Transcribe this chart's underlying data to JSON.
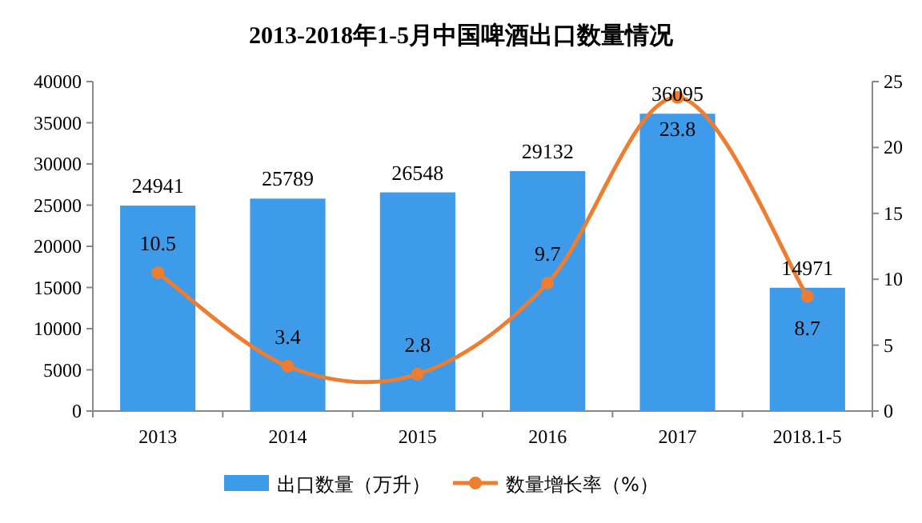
{
  "chart_data": {
    "type": "bar",
    "title": "2013-2018年1-5月中国啤酒出口数量情况",
    "categories": [
      "2013",
      "2014",
      "2015",
      "2016",
      "2017",
      "2018.1-5"
    ],
    "series": [
      {
        "name": "出口数量（万升）",
        "color": "#3d9be9",
        "values": [
          24941,
          25789,
          26548,
          29132,
          36095,
          14971
        ]
      },
      {
        "name": "数量增长率（%）",
        "type": "line",
        "axis": "y2",
        "color": "#ed7d31",
        "marker": "circle",
        "values": [
          10.5,
          3.4,
          2.8,
          9.7,
          23.8,
          8.7
        ]
      }
    ],
    "ylim": [
      0,
      40000
    ],
    "yticks": [
      0,
      5000,
      10000,
      15000,
      20000,
      25000,
      30000,
      35000,
      40000
    ],
    "y2lim": [
      0,
      25
    ],
    "y2ticks": [
      0,
      5,
      10,
      15,
      20,
      25
    ],
    "data_labels": true,
    "legend": "bottom",
    "grid": false
  }
}
